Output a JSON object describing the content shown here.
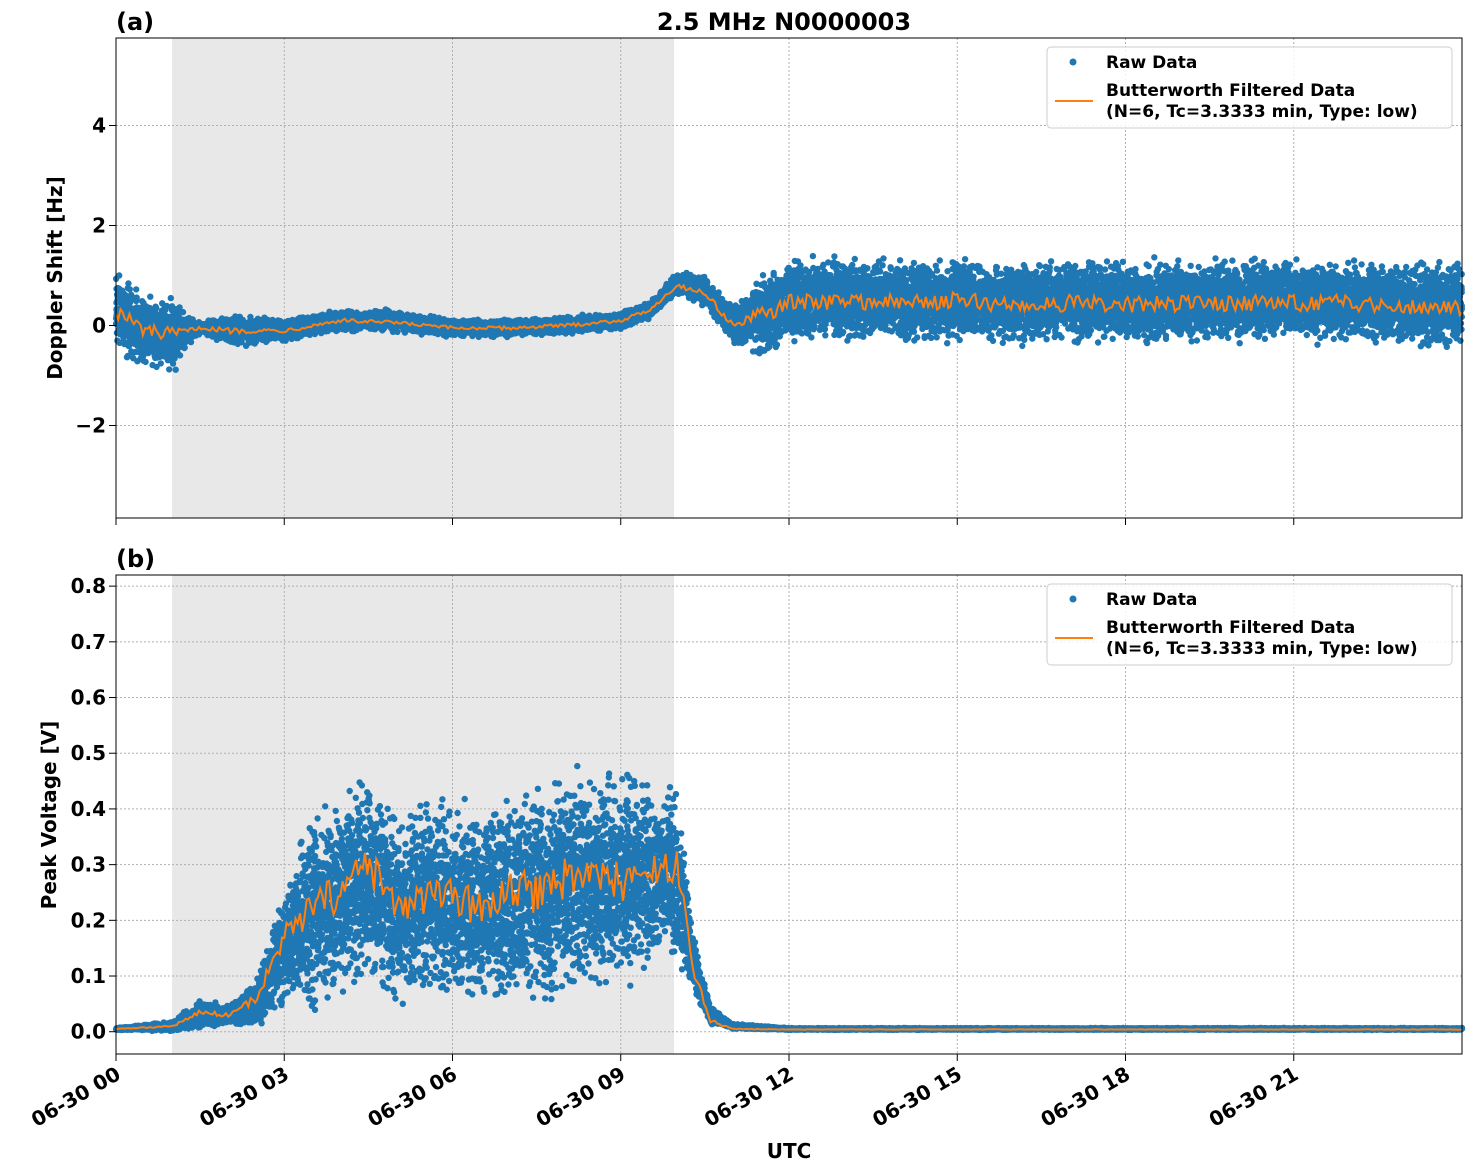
{
  "figure": {
    "title": "2.5 MHz N0000003",
    "xlabel": "UTC",
    "x_tick_labels": [
      "06-30 00",
      "06-30 03",
      "06-30 06",
      "06-30 09",
      "06-30 12",
      "06-30 15",
      "06-30 18",
      "06-30 21"
    ],
    "colors": {
      "raw": "#1f77b4",
      "filtered": "#ff7f0e",
      "shade": "#e8e8e8",
      "grid": "#b0b0b0"
    }
  },
  "legend": {
    "raw_label": "Raw Data",
    "filtered_label_line1": "Butterworth Filtered Data",
    "filtered_label_line2": "(N=6, Tc=3.3333 min, Type: low)"
  },
  "chart_data": [
    {
      "panel_label": "(a)",
      "type": "scatter",
      "ylabel": "Doppler Shift [Hz]",
      "xlim_hours": [
        0,
        24
      ],
      "ylim": [
        -3.85,
        5.75
      ],
      "y_ticks": [
        -2,
        0,
        2,
        4
      ],
      "y_tick_labels": [
        "−2",
        "0",
        "2",
        "4"
      ],
      "grid": true,
      "legend_position": "top-right",
      "shaded_interval_hours": [
        1.0,
        9.95
      ],
      "series": [
        {
          "name": "Raw Data",
          "hour_points": [
            0,
            0.5,
            1,
            1.3,
            1.5,
            2,
            3,
            4,
            5,
            6,
            7,
            8,
            9,
            9.5,
            10,
            10.5,
            11,
            11.5,
            12,
            13,
            14,
            15,
            16,
            17,
            18,
            19,
            20,
            21,
            22,
            23,
            24
          ],
          "mean": [
            0.3,
            -0.1,
            -0.2,
            -0.1,
            -0.05,
            -0.1,
            -0.1,
            0.1,
            0.1,
            -0.05,
            -0.05,
            0.0,
            0.1,
            0.3,
            0.85,
            0.7,
            0.0,
            0.2,
            0.5,
            0.55,
            0.5,
            0.5,
            0.45,
            0.5,
            0.45,
            0.5,
            0.5,
            0.5,
            0.5,
            0.45,
            0.4
          ],
          "spread": [
            1.0,
            0.8,
            0.9,
            0.3,
            0.15,
            0.35,
            0.25,
            0.25,
            0.25,
            0.2,
            0.2,
            0.2,
            0.2,
            0.2,
            0.25,
            0.35,
            0.4,
            0.95,
            0.95,
            0.95,
            0.95,
            0.95,
            0.95,
            0.95,
            0.95,
            0.95,
            0.95,
            0.95,
            0.95,
            0.95,
            0.95
          ]
        },
        {
          "name": "Butterworth Filtered Data (N=6, Tc=3.3333 min, Type: low)",
          "hour_points": [
            0,
            0.5,
            1,
            1.3,
            1.5,
            2,
            3,
            4,
            5,
            6,
            7,
            8,
            9,
            9.5,
            10,
            10.5,
            11,
            11.5,
            12,
            13,
            14,
            15,
            16,
            17,
            18,
            19,
            20,
            21,
            22,
            23,
            24
          ],
          "values": [
            0.3,
            -0.1,
            -0.2,
            -0.1,
            -0.05,
            -0.1,
            -0.1,
            0.1,
            0.05,
            -0.05,
            -0.05,
            0.0,
            0.1,
            0.3,
            0.8,
            0.65,
            0.0,
            0.2,
            0.45,
            0.5,
            0.45,
            0.5,
            0.4,
            0.45,
            0.4,
            0.45,
            0.45,
            0.45,
            0.45,
            0.4,
            0.35
          ]
        }
      ]
    },
    {
      "panel_label": "(b)",
      "type": "scatter",
      "ylabel": "Peak Voltage [V]",
      "xlim_hours": [
        0,
        24
      ],
      "ylim": [
        -0.04,
        0.82
      ],
      "y_ticks": [
        0.0,
        0.1,
        0.2,
        0.3,
        0.4,
        0.5,
        0.6,
        0.7,
        0.8
      ],
      "y_tick_labels": [
        "0.0",
        "0.1",
        "0.2",
        "0.3",
        "0.4",
        "0.5",
        "0.6",
        "0.7",
        "0.8"
      ],
      "grid": true,
      "legend_position": "top-right",
      "shaded_interval_hours": [
        1.0,
        9.95
      ],
      "series": [
        {
          "name": "Raw Data",
          "hour_points": [
            0,
            1,
            1.5,
            2,
            2.5,
            3,
            3.5,
            4,
            4.5,
            5,
            5.5,
            6,
            6.5,
            7,
            7.5,
            8,
            8.5,
            9,
            9.5,
            10,
            10.3,
            10.6,
            11,
            12,
            24
          ],
          "mean": [
            0.005,
            0.01,
            0.03,
            0.03,
            0.05,
            0.16,
            0.22,
            0.24,
            0.28,
            0.22,
            0.24,
            0.23,
            0.22,
            0.24,
            0.24,
            0.26,
            0.27,
            0.27,
            0.28,
            0.28,
            0.12,
            0.03,
            0.01,
            0.005,
            0.005
          ],
          "spread": [
            0.002,
            0.01,
            0.03,
            0.02,
            0.05,
            0.12,
            0.2,
            0.2,
            0.22,
            0.2,
            0.2,
            0.2,
            0.2,
            0.22,
            0.22,
            0.24,
            0.22,
            0.22,
            0.2,
            0.18,
            0.06,
            0.02,
            0.005,
            0.002,
            0.002
          ]
        },
        {
          "name": "Butterworth Filtered Data (N=6, Tc=3.3333 min, Type: low)",
          "hour_points": [
            0,
            1,
            1.5,
            2,
            2.5,
            3,
            3.5,
            4,
            4.5,
            5,
            5.5,
            6,
            6.5,
            7,
            7.5,
            8,
            8.5,
            9,
            9.5,
            10,
            10.3,
            10.6,
            11,
            12,
            24
          ],
          "values": [
            0.005,
            0.01,
            0.035,
            0.03,
            0.06,
            0.17,
            0.22,
            0.25,
            0.3,
            0.22,
            0.24,
            0.24,
            0.22,
            0.25,
            0.25,
            0.28,
            0.28,
            0.27,
            0.28,
            0.3,
            0.11,
            0.02,
            0.005,
            0.004,
            0.004
          ]
        }
      ]
    }
  ]
}
